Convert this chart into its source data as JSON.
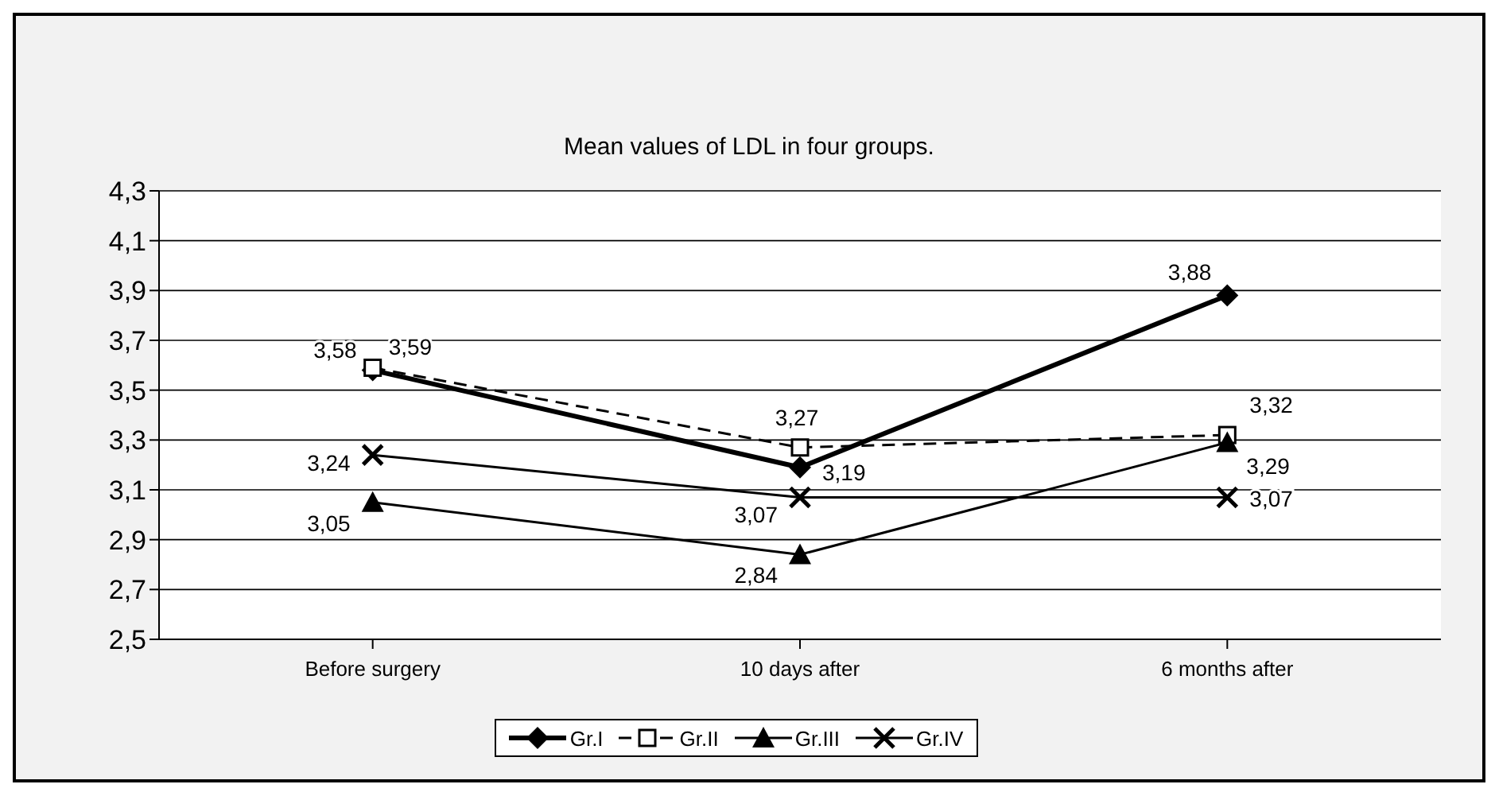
{
  "chart_data": {
    "type": "line",
    "title": "Mean values of LDL in four groups.",
    "categories": [
      "Before surgery",
      "10 days after",
      "6 months after"
    ],
    "series": [
      {
        "name": "Gr.I",
        "color": "#000000",
        "marker": "diamond",
        "line_style": "solid",
        "values": [
          3.58,
          3.19,
          3.88
        ],
        "value_labels": [
          "3,58",
          "3,19",
          "3,88"
        ]
      },
      {
        "name": "Gr.II",
        "color": "#000000",
        "marker": "square",
        "line_style": "dashed",
        "values": [
          3.59,
          3.27,
          3.32
        ],
        "value_labels": [
          "3,59",
          "3,27",
          "3,32"
        ]
      },
      {
        "name": "Gr.III",
        "color": "#000000",
        "marker": "triangle",
        "line_style": "solid",
        "values": [
          3.05,
          2.84,
          3.29
        ],
        "value_labels": [
          "3,05",
          "2,84",
          "3,29"
        ]
      },
      {
        "name": "Gr.IV",
        "color": "#000000",
        "marker": "cross",
        "line_style": "solid",
        "values": [
          3.24,
          3.07,
          3.07
        ],
        "value_labels": [
          "3,24",
          "3,07",
          "3,07"
        ]
      }
    ],
    "ylim": [
      2.5,
      4.3
    ],
    "yticks": [
      {
        "value": 2.5,
        "label": "2,5"
      },
      {
        "value": 2.7,
        "label": "2,7"
      },
      {
        "value": 2.9,
        "label": "2,9"
      },
      {
        "value": 3.1,
        "label": "3,1"
      },
      {
        "value": 3.3,
        "label": "3,3"
      },
      {
        "value": 3.5,
        "label": "3,5"
      },
      {
        "value": 3.7,
        "label": "3,7"
      },
      {
        "value": 3.9,
        "label": "3,9"
      },
      {
        "value": 4.1,
        "label": "4,1"
      },
      {
        "value": 4.3,
        "label": "4,3"
      }
    ],
    "grid": "y",
    "legend": "bottom"
  }
}
